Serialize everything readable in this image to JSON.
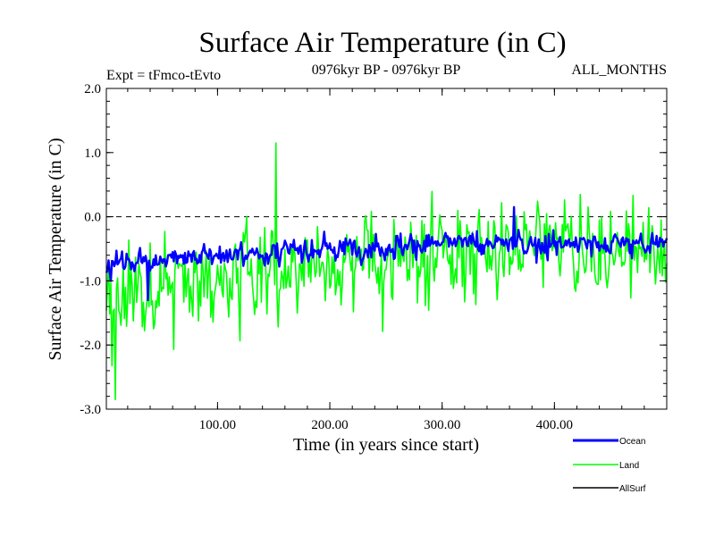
{
  "chart_data": {
    "type": "line",
    "title": "Surface Air Temperature (in C)",
    "experiment_label": "Expt = tFmco-tEvto",
    "period_label": "0976kyr BP - 0976kyr BP",
    "months_label": "ALL_MONTHS",
    "xlabel": "Time (in years since start)",
    "ylabel": "Surface Air Temperature (in C)",
    "xlim": [
      1,
      500
    ],
    "ylim": [
      -3.0,
      2.0
    ],
    "x_ticks": [
      100,
      200,
      300,
      400
    ],
    "x_tick_labels": [
      "100.00",
      "200.00",
      "300.00",
      "400.00"
    ],
    "y_ticks": [
      2.0,
      1.0,
      0.0,
      -1.0,
      -2.0,
      -3.0
    ],
    "y_tick_labels": [
      "2.0",
      "1.0",
      "0.0",
      "-1.0",
      "-2.0",
      "-3.0"
    ],
    "zero_line": 0.0,
    "series": [
      {
        "name": "Land",
        "color": "#00ff00",
        "n_years": 500,
        "approx_mean_start": -1.35,
        "approx_mean_end": -0.55,
        "approx_range": [
          -2.85,
          1.15
        ],
        "peak_max": {
          "x": 152,
          "y": 1.15
        },
        "trough_min": {
          "x": 9,
          "y": -2.85
        }
      },
      {
        "name": "Ocean",
        "color": "#0000ff",
        "n_years": 500,
        "approx_mean_start": -0.72,
        "approx_mean_end": -0.42,
        "approx_range": [
          -1.3,
          0.15
        ],
        "peak_max": {
          "x": 364,
          "y": 0.15
        },
        "trough_min": {
          "x": 38,
          "y": -1.3
        }
      },
      {
        "name": "AllSurf",
        "color": "#000000",
        "n_years": 500
      }
    ],
    "legend_order": [
      "Ocean",
      "Land",
      "AllSurf"
    ]
  }
}
